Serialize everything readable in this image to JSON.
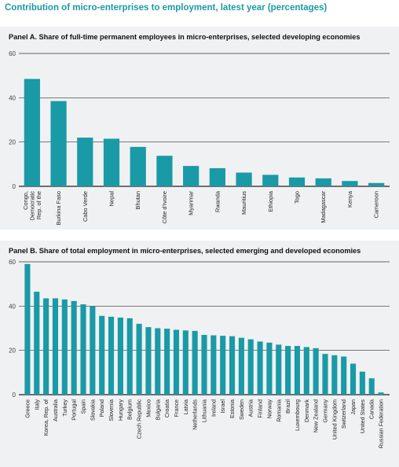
{
  "title": "Contribution of micro-enterprises to employment, latest year (percentages)",
  "colors": {
    "bar": "#1a9aa6",
    "title": "#1a9aa6",
    "panel_bg": "#f0f1f2",
    "axis": "#222222"
  },
  "chart_data": [
    {
      "type": "bar",
      "title": "Panel A.  Share of full-time permanent employees in micro-enterprises, selected developing economies",
      "xlabel": "",
      "ylabel": "",
      "ylim": [
        0,
        60
      ],
      "yticks": [
        0,
        20,
        40,
        60
      ],
      "grid": true,
      "categories": [
        [
          "Congo,",
          "Democratic",
          "Rep. of the"
        ],
        [
          "Burkina Faso"
        ],
        [
          "Cabo Verde"
        ],
        [
          "Nepal"
        ],
        [
          "Bhutan"
        ],
        [
          "Côte d'Ivoire"
        ],
        [
          "Myanmar"
        ],
        [
          "Rwanda"
        ],
        [
          "Mauritius"
        ],
        [
          "Ethiopia"
        ],
        [
          "Togo"
        ],
        [
          "Madagascar"
        ],
        [
          "Kenya"
        ],
        [
          "Cameroon"
        ]
      ],
      "values": [
        48.5,
        38.5,
        22,
        21.5,
        17.8,
        13.8,
        9.2,
        8.2,
        6.2,
        5.2,
        4.0,
        3.6,
        2.4,
        1.5
      ]
    },
    {
      "type": "bar",
      "title": "Panel B.  Share of total employment in micro-enterprises, selected emerging and developed economies",
      "xlabel": "",
      "ylabel": "",
      "ylim": [
        0,
        60
      ],
      "yticks": [
        0,
        20,
        40,
        60
      ],
      "grid": true,
      "categories": [
        "Greece",
        "Italy",
        "Korea, Rep. of",
        "Australia",
        "Turkey",
        "Portugal",
        "Spain",
        "Slovakia",
        "Poland",
        "Slovenia",
        "Hungary",
        "Belgium",
        "Czech Republic",
        "Mexico",
        "Bulgaria",
        "Croatia",
        "France",
        "Latvia",
        "Netherlands",
        "Lithuania",
        "Ireland",
        "Israel",
        "Estonia",
        "Sweden",
        "Austria",
        "Finland",
        "Norway",
        "Romania",
        "Brazil",
        "Luxembourg",
        "Denmark",
        "New Zealand",
        "Germany",
        "United Kingdom",
        "Switzerland",
        "Japan",
        "United States",
        "Canada",
        "Russian Federation"
      ],
      "values": [
        59,
        46.5,
        43.5,
        43.5,
        43.0,
        42.3,
        40.8,
        39.8,
        35.6,
        35.2,
        34.8,
        34.5,
        32.0,
        30.5,
        30.0,
        29.8,
        29.3,
        29.0,
        28.8,
        27.0,
        26.8,
        26.6,
        26.4,
        25.7,
        25.0,
        24.0,
        23.5,
        22.6,
        22.0,
        22.0,
        21.5,
        21.0,
        18.4,
        17.8,
        17.2,
        14.0,
        10.4,
        7.4,
        1.0
      ]
    }
  ]
}
